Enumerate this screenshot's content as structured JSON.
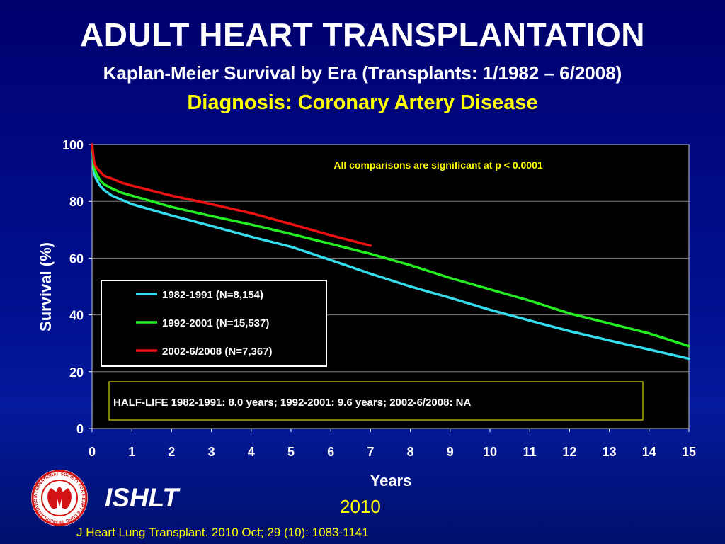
{
  "header": {
    "title": "ADULT HEART TRANSPLANTATION",
    "subtitle": "Kaplan-Meier Survival by Era (Transplants: 1/1982 – 6/2008)",
    "subtitle2": "Diagnosis: Coronary Artery Disease"
  },
  "footer": {
    "brand": "ISHLT",
    "year": "2010",
    "citation": "J Heart Lung Transplant. 2010 Oct; 29 (10): 1083-1141",
    "logo_text": "INTERNATIONAL SOCIETY FOR HEART & LUNG TRANSPLANTATION"
  },
  "colors": {
    "plot_background": "#000000",
    "series_1982": "#33ddee",
    "series_1992": "#22ee22",
    "series_2002": "#ee1111",
    "annotation": "#ffff00",
    "logo_red": "#d21414"
  },
  "chart_data": {
    "type": "line",
    "xlabel": "Years",
    "ylabel": "Survival (%)",
    "xlim": [
      0,
      15
    ],
    "ylim": [
      0,
      100
    ],
    "x_ticks": [
      "0",
      "1",
      "2",
      "3",
      "4",
      "5",
      "6",
      "7",
      "8",
      "9",
      "10",
      "11",
      "12",
      "13",
      "14",
      "15"
    ],
    "y_ticks": [
      "0",
      "20",
      "40",
      "60",
      "80",
      "100"
    ],
    "grid": "horizontal",
    "legend_position": "middle-left",
    "annotation": "All comparisons are significant at p < 0.0001",
    "half_life_note": "HALF-LIFE 1982-1991: 8.0 years; 1992-2001: 9.6 years; 2002-6/2008: NA",
    "series": [
      {
        "name": "1982-1991 (N=8,154)",
        "x": [
          0,
          0.05,
          0.1,
          0.2,
          0.3,
          0.5,
          0.75,
          1,
          2,
          3,
          4,
          5,
          6,
          7,
          8,
          9,
          10,
          11,
          12,
          13,
          14,
          15
        ],
        "y": [
          100,
          90,
          88,
          85.5,
          84,
          82,
          80.5,
          79,
          75,
          71.3,
          67.5,
          64,
          59.3,
          54.5,
          50,
          46,
          41.8,
          38,
          34.3,
          31,
          27.8,
          24.6
        ]
      },
      {
        "name": "1992-2001 (N=15,537)",
        "x": [
          0,
          0.05,
          0.1,
          0.2,
          0.3,
          0.5,
          0.75,
          1,
          2,
          3,
          4,
          5,
          6,
          7,
          8,
          9,
          10,
          11,
          12,
          13,
          14,
          15
        ],
        "y": [
          100,
          92,
          90,
          87.5,
          86,
          84.5,
          83,
          82,
          78,
          74.8,
          71.8,
          68.5,
          65,
          61.5,
          57.5,
          53,
          49,
          45,
          40.5,
          37,
          33.5,
          29
        ]
      },
      {
        "name": "2002-6/2008 (N=7,367)",
        "x": [
          0,
          0.05,
          0.1,
          0.2,
          0.3,
          0.5,
          0.75,
          1,
          2,
          3,
          4,
          5,
          6,
          7
        ],
        "y": [
          100,
          94,
          92,
          90.5,
          89,
          88,
          86.5,
          85.5,
          82,
          79,
          75.8,
          72,
          68,
          64.4
        ]
      }
    ]
  }
}
